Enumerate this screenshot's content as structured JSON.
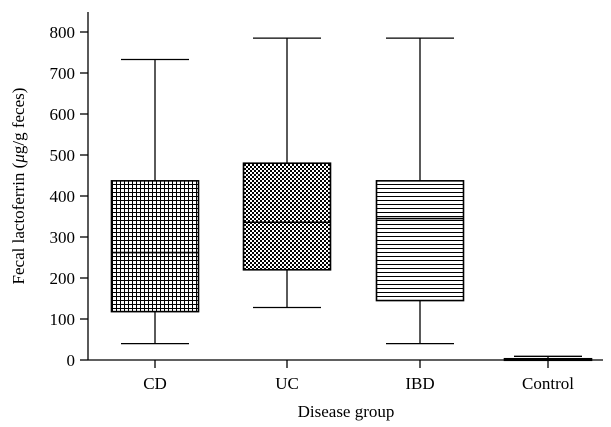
{
  "chart_data": {
    "type": "box",
    "title": "",
    "xlabel": "Disease group",
    "ylabel_prefix": "Fecal lactoferrin (",
    "ylabel_unit_mu": "μ",
    "ylabel_suffix": "g/g feces)",
    "ylim": [
      0,
      800
    ],
    "yticks": [
      0,
      100,
      200,
      300,
      400,
      500,
      600,
      700,
      800
    ],
    "grid": false,
    "categories": [
      "CD",
      "UC",
      "IBD",
      "Control"
    ],
    "boxes": [
      {
        "name": "CD",
        "min": 40,
        "q1": 118,
        "median": 262,
        "q3": 437,
        "max": 733,
        "pattern": "grid"
      },
      {
        "name": "UC",
        "min": 128,
        "q1": 220,
        "median": 336,
        "q3": 480,
        "max": 785,
        "pattern": "checker"
      },
      {
        "name": "IBD",
        "min": 40,
        "q1": 145,
        "median": 345,
        "q3": 437,
        "max": 785,
        "pattern": "hlines"
      },
      {
        "name": "Control",
        "min": 0,
        "q1": 1,
        "median": 2,
        "q3": 3,
        "max": 9,
        "pattern": "hlines"
      }
    ]
  }
}
